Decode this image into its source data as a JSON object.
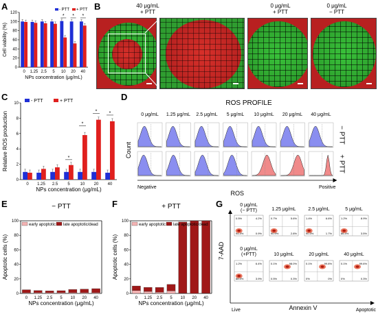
{
  "panels": {
    "A": "A",
    "B": "B",
    "C": "C",
    "D": "D",
    "E": "E",
    "F": "F",
    "G": "G"
  },
  "colors": {
    "minus_ptt": "#1f2fd6",
    "plus_ptt": "#e0201e",
    "early": "#f4b3b3",
    "late": "#a01818",
    "green": "#2fa52f",
    "red": "#d8302a"
  },
  "panel_b": {
    "labels": [
      "40 μg/mL\n+ PTT",
      "0 μg/mL\n+ PTT",
      "0 μg/mL\n− PTT"
    ],
    "label_1a": "40 μg/mL",
    "label_1b": "+ PTT",
    "label_2a": "0 μg/mL",
    "label_2b": "+ PTT",
    "label_3a": "0 μg/mL",
    "label_3b": "− PTT"
  },
  "panel_d": {
    "title": "ROS PROFILE",
    "concentrations": [
      "0 μg/mL",
      "1.25 μg/mL",
      "2.5 μg/mL",
      "5 μg/mL",
      "10 μg/mL",
      "20 μg/mL",
      "40 μg/mL"
    ],
    "row_labels": [
      "− PTT",
      "+ PTT"
    ],
    "ylabel": "Count",
    "xlabel": "ROS",
    "left_label": "Negative",
    "right_label": "Positive"
  },
  "panel_g": {
    "labels": [
      "0 μg/mL\n(− PTT)",
      "1.25 μg/mL",
      "2.5 μg/mL",
      "5 μg/mL",
      "0 μg/mL\n(+PTT)",
      "10 μg/mL",
      "20 μg/mL",
      "40 μg/mL"
    ],
    "top_row": [
      {
        "label": "1.25 μg/mL",
        "q": [
          "0.7%",
          "5.6%",
          "90.9%",
          "2.8%"
        ]
      },
      {
        "label": "2.5 μg/mL",
        "q": [
          "1.4%",
          "6.6%",
          "90.3%",
          "1.7%"
        ]
      },
      {
        "label": "5 μg/mL",
        "q": [
          "1.2%",
          "8.9%",
          "86.4%",
          "3.5%"
        ]
      }
    ],
    "top_first": {
      "label_a": "0 μg/mL",
      "label_b": "(− PTT)",
      "q": [
        "0.5%",
        "4.2%",
        "94.4%",
        "0.9%"
      ]
    },
    "bottom_first": {
      "label_a": "0 μg/mL",
      "label_b": "(+PTT)",
      "q": [
        "1.2%",
        "6.4%",
        "88.5%",
        "3.9%"
      ]
    },
    "bottom_row": [
      {
        "label": "10 μg/mL",
        "q": [
          "0.1%",
          "98.0%",
          "0.5%",
          "0.3%"
        ]
      },
      {
        "label": "20 μg/mL",
        "q": [
          "0.1%",
          "99.8%",
          "0%",
          "0%"
        ]
      },
      {
        "label": "40 μg/mL",
        "q": [
          "0.1%",
          "99.6%",
          "0%",
          "0.3%"
        ]
      }
    ],
    "ylabel": "7-AAD",
    "xlabel": "Annexin V",
    "left_label": "Live",
    "right_label": "Apoptotic"
  },
  "chart_data": [
    {
      "panel": "A",
      "type": "bar",
      "categories": [
        "0",
        "1.25",
        "2.5",
        "5",
        "10",
        "20",
        "40"
      ],
      "series": [
        {
          "name": "- PTT",
          "values": [
            100,
            99,
            100,
            100,
            101,
            100,
            100
          ]
        },
        {
          "name": "+ PTT",
          "values": [
            99,
            97,
            96,
            95,
            65,
            52,
            91
          ]
        }
      ],
      "xlabel": "NPs concentration (μg/mL)",
      "ylabel": "Cell viability (%)",
      "ylim": [
        0,
        120
      ],
      "yticks": [
        "0",
        "20",
        "40",
        "60",
        "80",
        "100",
        "120"
      ],
      "legend": "top-right",
      "annotations": [
        "*",
        "*",
        "*"
      ]
    },
    {
      "panel": "C",
      "type": "bar",
      "categories": [
        "0",
        "1.25",
        "2.5",
        "5",
        "10",
        "20",
        "40"
      ],
      "series": [
        {
          "name": "- PTT",
          "values": [
            1.0,
            0.9,
            1.0,
            1.0,
            1.0,
            1.0,
            0.9
          ]
        },
        {
          "name": "+ PTT",
          "values": [
            0.9,
            1.4,
            1.6,
            1.9,
            5.8,
            7.8,
            7.6
          ]
        }
      ],
      "xlabel": "NPs concentration (μg/mL)",
      "ylabel": "Relative ROS production",
      "ylim": [
        0,
        10
      ],
      "yticks": [
        "0",
        "2",
        "4",
        "6",
        "8",
        "10"
      ],
      "legend": "top-left",
      "annotations": [
        "*",
        "*",
        "*",
        "*"
      ]
    },
    {
      "panel": "E",
      "type": "bar",
      "title": "− PTT",
      "categories": [
        "0",
        "1.25",
        "2.5",
        "5",
        "10",
        "20",
        "40"
      ],
      "series": [
        {
          "name": "early apoptotic",
          "values": [
            0.9,
            1.0,
            1.0,
            1.0,
            1.0,
            1.0,
            1.0
          ]
        },
        {
          "name": "late apoptotic/dead",
          "values": [
            4.2,
            3.0,
            2.5,
            2.8,
            4.5,
            5.0,
            5.6
          ]
        }
      ],
      "xlabel": "NPs concentration (μg/mL)",
      "ylabel": "Apoptotic cells (%)",
      "ylim": [
        0,
        100
      ],
      "yticks": [
        "0",
        "20",
        "40",
        "60",
        "80",
        "100"
      ],
      "legend": "top"
    },
    {
      "panel": "F",
      "type": "bar",
      "title": "+ PTT",
      "categories": [
        "0",
        "1.25",
        "2.5",
        "5",
        "10",
        "20",
        "40"
      ],
      "series": [
        {
          "name": "early apoptotic",
          "values": [
            3.9,
            2.8,
            1.7,
            3.5,
            0.3,
            0.0,
            0.3
          ]
        },
        {
          "name": "late apoptotic/dead",
          "values": [
            6.4,
            5.6,
            6.6,
            8.9,
            98.0,
            99.8,
            99.6
          ]
        }
      ],
      "xlabel": "NPs concentration (μg/mL)",
      "ylabel": "Apoptotic cells (%)",
      "ylim": [
        0,
        100
      ],
      "yticks": [
        "0",
        "20",
        "40",
        "60",
        "80",
        "100"
      ],
      "legend": "top"
    }
  ]
}
